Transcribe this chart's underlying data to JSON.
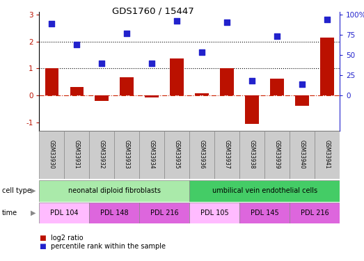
{
  "title": "GDS1760 / 15447",
  "samples": [
    "GSM33930",
    "GSM33931",
    "GSM33932",
    "GSM33933",
    "GSM33934",
    "GSM33935",
    "GSM33936",
    "GSM33937",
    "GSM33938",
    "GSM33939",
    "GSM33940",
    "GSM33941"
  ],
  "log2_ratio": [
    1.02,
    0.32,
    -0.2,
    0.68,
    -0.08,
    1.37,
    0.07,
    1.0,
    -1.05,
    0.63,
    -0.38,
    2.15
  ],
  "percentile_rank": [
    89,
    63,
    40,
    77,
    40,
    92,
    53,
    90,
    18,
    73,
    14,
    94
  ],
  "ylim": [
    -1.3,
    3.1
  ],
  "yticks_left": [
    -1,
    0,
    1,
    2,
    3
  ],
  "yticks_right_vals": [
    0,
    25,
    50,
    75,
    100
  ],
  "hlines": [
    1.0,
    2.0
  ],
  "bar_color": "#bb1100",
  "dot_color": "#2222cc",
  "cell_type_groups": [
    {
      "label": "neonatal diploid fibroblasts",
      "start": 0,
      "end": 6,
      "color": "#aaeaaa"
    },
    {
      "label": "umbilical vein endothelial cells",
      "start": 6,
      "end": 12,
      "color": "#44cc66"
    }
  ],
  "time_groups": [
    {
      "label": "PDL 104",
      "start": 0,
      "end": 2,
      "color": "#ffbbff"
    },
    {
      "label": "PDL 148",
      "start": 2,
      "end": 4,
      "color": "#dd66dd"
    },
    {
      "label": "PDL 216",
      "start": 4,
      "end": 6,
      "color": "#dd66dd"
    },
    {
      "label": "PDL 105",
      "start": 6,
      "end": 8,
      "color": "#ffbbff"
    },
    {
      "label": "PDL 145",
      "start": 8,
      "end": 10,
      "color": "#dd66dd"
    },
    {
      "label": "PDL 216",
      "start": 10,
      "end": 12,
      "color": "#dd66dd"
    }
  ],
  "legend_items": [
    {
      "label": "log2 ratio",
      "color": "#bb1100"
    },
    {
      "label": "percentile rank within the sample",
      "color": "#2222cc"
    }
  ],
  "cell_type_label": "cell type",
  "time_label": "time",
  "bar_width": 0.55,
  "dot_size": 28,
  "sample_box_color": "#cccccc",
  "zero_line_color": "#cc2200",
  "background_color": "#ffffff"
}
